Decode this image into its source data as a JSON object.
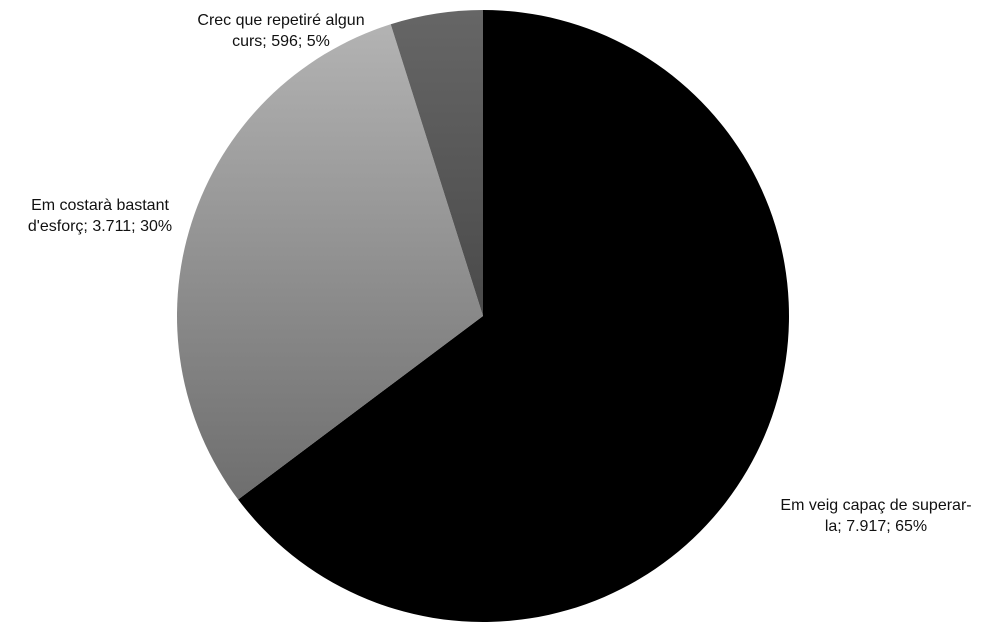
{
  "chart_data": {
    "type": "pie",
    "title": "",
    "slices": [
      {
        "label": "Em veig capaç de superar-la",
        "value": 7917,
        "percent": 65,
        "color": "#000000",
        "label_lines": [
          "Em veig capaç de superar-",
          "la; 7.917; 65%"
        ]
      },
      {
        "label": "Em costarà bastant d'esforç",
        "value": 3711,
        "percent": 30,
        "color": "#8f8f8f",
        "label_lines": [
          "Em costarà bastant",
          "d'esforç; 3.711; 30%"
        ]
      },
      {
        "label": "Crec que repetiré algun curs",
        "value": 596,
        "percent": 5,
        "color": "#595959",
        "label_lines": [
          "Crec que repetiré algun",
          "curs; 596; 5%"
        ]
      }
    ],
    "start_angle": "12 o'clock",
    "direction": "clockwise",
    "legend": "none"
  }
}
